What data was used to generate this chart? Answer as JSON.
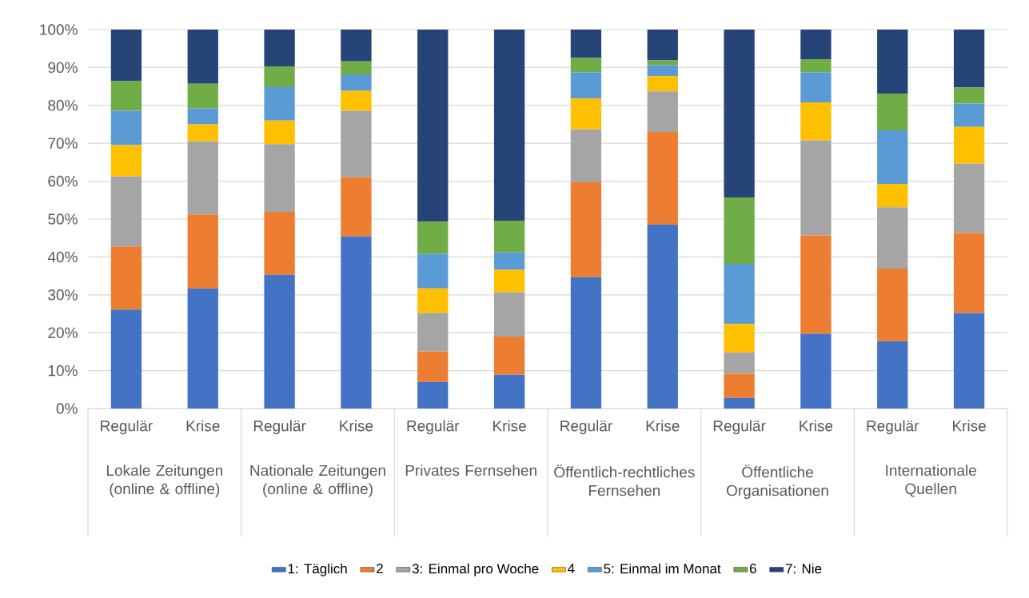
{
  "chart_data": {
    "type": "bar",
    "stacked": true,
    "categories": [
      "Regulär",
      "Krise",
      "Regulär",
      "Krise",
      "Regulär",
      "Krise",
      "Regulär",
      "Krise",
      "Regulär",
      "Krise",
      "Regulär",
      "Krise"
    ],
    "annotations": [
      "Lokale Zeitungen (online & offline)",
      "Nationale Zeitungen (online & offline)",
      "Privates Fernsehen",
      "Öffentlich-rechtliches Fernsehen",
      "Öffentliche Organisationen",
      "Internationale Quellen"
    ],
    "series": [
      {
        "name": "1: Täglich",
        "color": "#4472c4",
        "values": [
          26.1,
          31.7,
          35.3,
          45.4,
          7.0,
          8.9,
          34.7,
          48.6,
          2.8,
          19.7,
          17.8,
          25.2
        ]
      },
      {
        "name": "2",
        "color": "#ed7d31",
        "values": [
          16.7,
          19.5,
          16.6,
          15.6,
          8.1,
          10.1,
          25.0,
          24.4,
          6.4,
          26.0,
          19.1,
          21.1
        ]
      },
      {
        "name": "3: Einmal pro Woche",
        "color": "#a5a5a5",
        "values": [
          18.5,
          19.3,
          17.9,
          17.6,
          10.1,
          11.7,
          14.0,
          10.7,
          5.6,
          25.1,
          16.2,
          18.3
        ]
      },
      {
        "name": "4",
        "color": "#ffc000",
        "values": [
          8.2,
          4.5,
          6.2,
          5.2,
          6.5,
          5.9,
          8.1,
          4.0,
          7.5,
          10.0,
          6.2,
          9.7
        ]
      },
      {
        "name": "5: Einmal im Monat",
        "color": "#5b9bd5",
        "values": [
          9.1,
          4.2,
          8.8,
          4.4,
          9.1,
          4.6,
          6.9,
          2.9,
          15.9,
          7.9,
          14.1,
          6.2
        ]
      },
      {
        "name": "6",
        "color": "#70ad47",
        "values": [
          7.8,
          6.5,
          5.5,
          3.4,
          8.5,
          8.4,
          3.8,
          1.3,
          17.5,
          3.5,
          9.7,
          4.2
        ]
      },
      {
        "name": "7: Nie",
        "color": "#264478",
        "values": [
          13.6,
          14.3,
          9.7,
          8.4,
          50.7,
          50.4,
          7.5,
          8.1,
          44.3,
          7.8,
          16.9,
          15.3
        ]
      }
    ],
    "ylim": [
      0,
      100
    ],
    "yticks": [
      {
        "value": 0,
        "label": "0%"
      },
      {
        "value": 10,
        "label": "10%"
      },
      {
        "value": 20,
        "label": "20%"
      },
      {
        "value": 30,
        "label": "30%"
      },
      {
        "value": 40,
        "label": "40%"
      },
      {
        "value": 50,
        "label": "50%"
      },
      {
        "value": 60,
        "label": "60%"
      },
      {
        "value": 70,
        "label": "70%"
      },
      {
        "value": 80,
        "label": "80%"
      },
      {
        "value": 90,
        "label": "90%"
      },
      {
        "value": 100,
        "label": "100%"
      }
    ],
    "grid": "y",
    "legend": "bottom"
  }
}
